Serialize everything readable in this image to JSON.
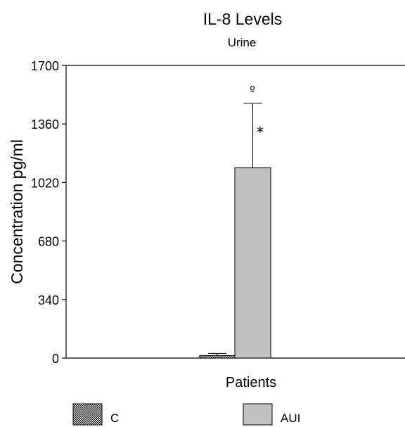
{
  "chart_data": {
    "type": "bar",
    "title": "IL-8 Levels",
    "subtitle": "Urine",
    "xlabel": "Patients",
    "ylabel": "Concentration pg/ml",
    "ylim": [
      0,
      1700
    ],
    "yticks": [
      "0",
      "340",
      "680",
      "1020",
      "1360",
      "1700"
    ],
    "grid": false,
    "legend_position": "bottom",
    "series": [
      {
        "name": "C",
        "value": 15,
        "error": 12,
        "fill": "checkered",
        "color": "#ffffff"
      },
      {
        "name": "AUI",
        "value": 1105,
        "error": 375,
        "fill": "solid",
        "color": "#c0c0c0",
        "annotations": [
          "º",
          "*"
        ]
      }
    ]
  }
}
